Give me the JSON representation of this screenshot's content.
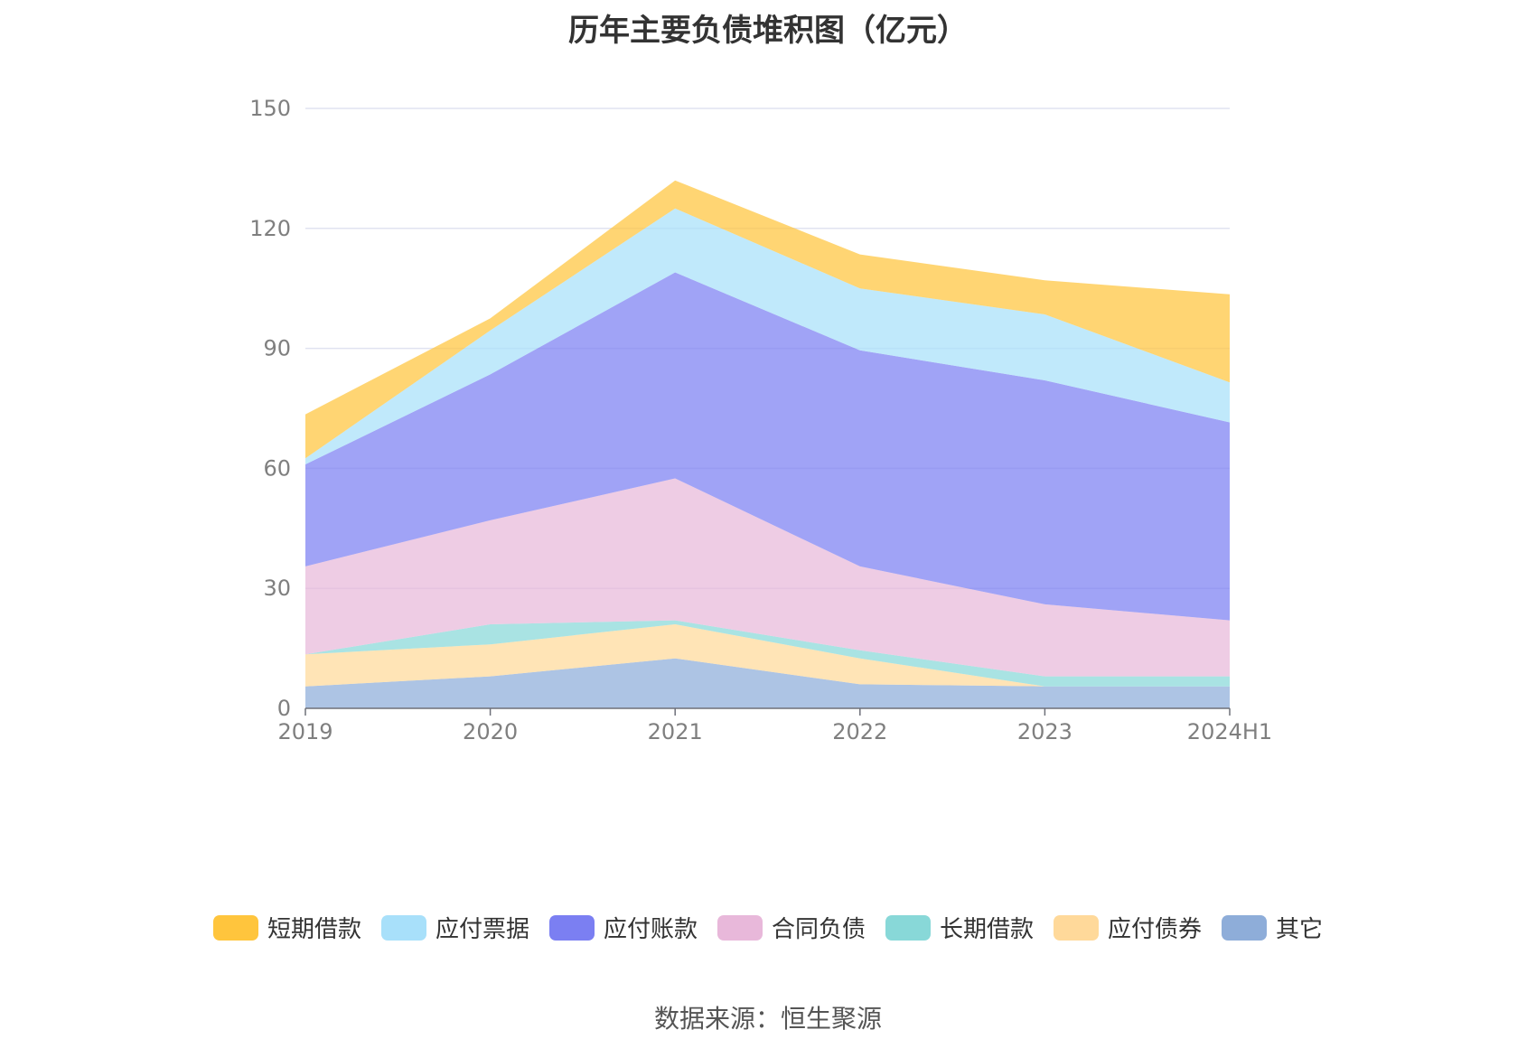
{
  "chart_data": {
    "type": "area",
    "stacked": true,
    "title": "历年主要负债堆积图（亿元）",
    "categories": [
      "2019",
      "2020",
      "2021",
      "2022",
      "2023",
      "2024H1"
    ],
    "ylim": [
      0,
      150
    ],
    "yticks": [
      0,
      30,
      60,
      90,
      120,
      150
    ],
    "grid": true,
    "legend_position": "bottom",
    "series": [
      {
        "name": "其它",
        "color": "#8eadd9",
        "values": [
          5.5,
          8,
          12.5,
          6,
          5.5,
          5.5
        ]
      },
      {
        "name": "应付债券",
        "color": "#ffd99a",
        "values": [
          8,
          8,
          8.5,
          6.5,
          0,
          0
        ]
      },
      {
        "name": "长期借款",
        "color": "#88d8d8",
        "values": [
          0,
          5,
          1,
          2,
          2.5,
          2.5
        ]
      },
      {
        "name": "合同负债",
        "color": "#e8b8da",
        "values": [
          22,
          26,
          35.5,
          21,
          18,
          14
        ]
      },
      {
        "name": "应付账款",
        "color": "#7b7ff2",
        "values": [
          25.5,
          36.5,
          51.5,
          54,
          56,
          49.5
        ]
      },
      {
        "name": "应付票据",
        "color": "#a8e0fa",
        "values": [
          1.5,
          11,
          16,
          15.5,
          16.5,
          10
        ]
      },
      {
        "name": "短期借款",
        "color": "#ffc53d",
        "values": [
          11,
          3,
          7,
          8.5,
          8.5,
          22
        ]
      }
    ]
  },
  "legend": [
    {
      "name": "短期借款",
      "color": "#ffc53d"
    },
    {
      "name": "应付票据",
      "color": "#a8e0fa"
    },
    {
      "name": "应付账款",
      "color": "#7b7ff2"
    },
    {
      "name": "合同负债",
      "color": "#e8b8da"
    },
    {
      "name": "长期借款",
      "color": "#88d8d8"
    },
    {
      "name": "应付债券",
      "color": "#ffd99a"
    },
    {
      "name": "其它",
      "color": "#8eadd9"
    }
  ],
  "source": "数据来源：恒生聚源"
}
